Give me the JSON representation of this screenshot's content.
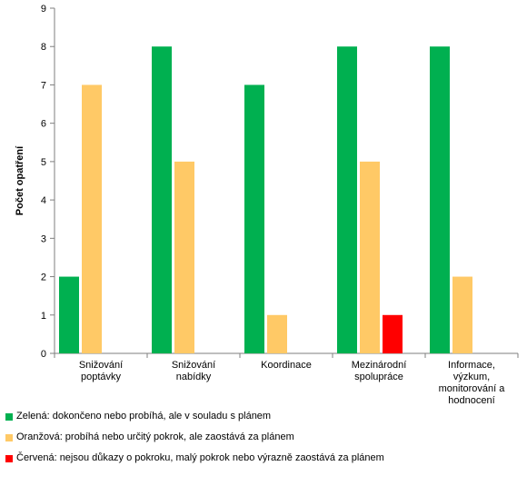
{
  "chart_data": {
    "type": "bar",
    "ylabel": "Počet opatření",
    "xlabel": "",
    "title": "",
    "ylim": [
      0,
      9
    ],
    "yticks": [
      0,
      1,
      2,
      3,
      4,
      5,
      6,
      7,
      8,
      9
    ],
    "categories": [
      [
        "Snižování",
        "poptávky"
      ],
      [
        "Snižování",
        "nabídky"
      ],
      [
        "Koordinace"
      ],
      [
        "Mezinárodní",
        "spolupráce"
      ],
      [
        "Informace,",
        "výzkum,",
        "monitorování a",
        "hodnocení"
      ]
    ],
    "series": [
      {
        "color": "#00b050",
        "values": [
          2,
          8,
          7,
          8,
          8
        ]
      },
      {
        "color": "#ffc966",
        "values": [
          7,
          5,
          1,
          5,
          2
        ]
      },
      {
        "color": "#ff0000",
        "values": [
          0,
          0,
          0,
          1,
          0
        ]
      }
    ],
    "legend_position": "bottom",
    "grid": false
  },
  "legend": [
    {
      "color": "#00b050",
      "label": "Zelená: dokončeno nebo probíhá, ale v souladu s plánem"
    },
    {
      "color": "#ffc966",
      "label": "Oranžová: probíhá nebo určitý pokrok, ale zaostává za plánem"
    },
    {
      "color": "#ff0000",
      "label": "Červená: nejsou důkazy o pokroku, malý pokrok nebo výrazně zaostává za plánem"
    }
  ]
}
